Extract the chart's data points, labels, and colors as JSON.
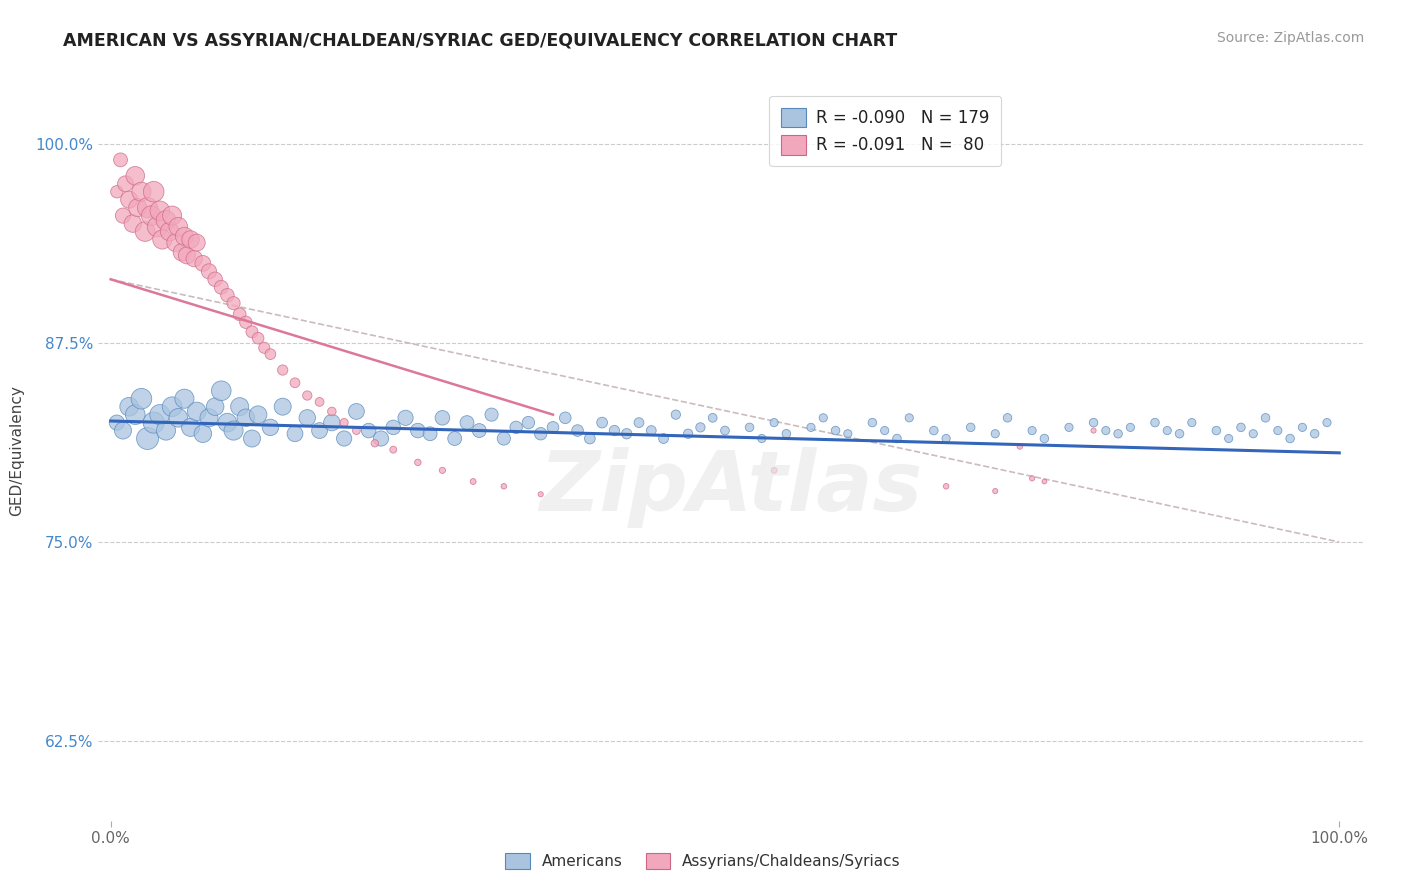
{
  "title": "AMERICAN VS ASSYRIAN/CHALDEAN/SYRIAC GED/EQUIVALENCY CORRELATION CHART",
  "source": "Source: ZipAtlas.com",
  "ylabel": "GED/Equivalency",
  "xlim": [
    -0.01,
    1.02
  ],
  "ylim": [
    0.575,
    1.04
  ],
  "ytick_labels": [
    "62.5%",
    "75.0%",
    "87.5%",
    "100.0%"
  ],
  "ytick_values": [
    0.625,
    0.75,
    0.875,
    1.0
  ],
  "xtick_labels": [
    "0.0%",
    "100.0%"
  ],
  "xtick_values": [
    0.0,
    1.0
  ],
  "legend_blue_label": "R = -0.090   N = 179",
  "legend_pink_label": "R = -0.091   N =  80",
  "blue_color": "#aac4e0",
  "pink_color": "#f2a8bc",
  "blue_edge": "#5588bb",
  "pink_edge": "#cc6688",
  "trendline_blue": "#3366bb",
  "trendline_pink": "#dd7799",
  "trendline_dashed_color": "#ccbbbb",
  "watermark": "ZipAtlas",
  "blue_trend_x": [
    0.0,
    1.0
  ],
  "blue_trend_y": [
    0.826,
    0.806
  ],
  "pink_trend_x": [
    0.0,
    0.36
  ],
  "pink_trend_y": [
    0.915,
    0.83
  ],
  "dashed_trend_x": [
    0.0,
    1.0
  ],
  "dashed_trend_y": [
    0.915,
    0.75
  ],
  "blue_scatter_x": [
    0.005,
    0.01,
    0.015,
    0.02,
    0.025,
    0.03,
    0.035,
    0.04,
    0.045,
    0.05,
    0.055,
    0.06,
    0.065,
    0.07,
    0.075,
    0.08,
    0.085,
    0.09,
    0.095,
    0.1,
    0.105,
    0.11,
    0.115,
    0.12,
    0.13,
    0.14,
    0.15,
    0.16,
    0.17,
    0.18,
    0.19,
    0.2,
    0.21,
    0.22,
    0.23,
    0.24,
    0.25,
    0.26,
    0.27,
    0.28,
    0.29,
    0.3,
    0.31,
    0.32,
    0.33,
    0.34,
    0.35,
    0.36,
    0.37,
    0.38,
    0.39,
    0.4,
    0.41,
    0.42,
    0.43,
    0.44,
    0.45,
    0.46,
    0.47,
    0.48,
    0.49,
    0.5,
    0.52,
    0.53,
    0.54,
    0.55,
    0.57,
    0.58,
    0.59,
    0.6,
    0.62,
    0.63,
    0.64,
    0.65,
    0.67,
    0.68,
    0.7,
    0.72,
    0.73,
    0.75,
    0.76,
    0.78,
    0.8,
    0.81,
    0.82,
    0.83,
    0.85,
    0.86,
    0.87,
    0.88,
    0.9,
    0.91,
    0.92,
    0.93,
    0.94,
    0.95,
    0.96,
    0.97,
    0.98,
    0.99
  ],
  "blue_scatter_y": [
    0.825,
    0.82,
    0.835,
    0.83,
    0.84,
    0.815,
    0.825,
    0.83,
    0.82,
    0.835,
    0.828,
    0.84,
    0.822,
    0.832,
    0.818,
    0.828,
    0.835,
    0.845,
    0.825,
    0.82,
    0.835,
    0.828,
    0.815,
    0.83,
    0.822,
    0.835,
    0.818,
    0.828,
    0.82,
    0.825,
    0.815,
    0.832,
    0.82,
    0.815,
    0.822,
    0.828,
    0.82,
    0.818,
    0.828,
    0.815,
    0.825,
    0.82,
    0.83,
    0.815,
    0.822,
    0.825,
    0.818,
    0.822,
    0.828,
    0.82,
    0.815,
    0.825,
    0.82,
    0.818,
    0.825,
    0.82,
    0.815,
    0.83,
    0.818,
    0.822,
    0.828,
    0.82,
    0.822,
    0.815,
    0.825,
    0.818,
    0.822,
    0.828,
    0.82,
    0.818,
    0.825,
    0.82,
    0.815,
    0.828,
    0.82,
    0.815,
    0.822,
    0.818,
    0.828,
    0.82,
    0.815,
    0.822,
    0.825,
    0.82,
    0.818,
    0.822,
    0.825,
    0.82,
    0.818,
    0.825,
    0.82,
    0.815,
    0.822,
    0.818,
    0.828,
    0.82,
    0.815,
    0.822,
    0.818,
    0.825
  ],
  "blue_scatter_sizes": [
    120,
    150,
    180,
    200,
    220,
    250,
    230,
    210,
    190,
    200,
    180,
    190,
    170,
    180,
    160,
    170,
    160,
    200,
    180,
    190,
    170,
    160,
    150,
    160,
    140,
    150,
    130,
    140,
    130,
    140,
    120,
    130,
    110,
    120,
    110,
    120,
    110,
    100,
    110,
    100,
    100,
    100,
    90,
    90,
    80,
    80,
    80,
    70,
    70,
    70,
    60,
    60,
    55,
    55,
    50,
    50,
    50,
    45,
    45,
    45,
    40,
    40,
    38,
    35,
    35,
    38,
    35,
    35,
    38,
    35,
    38,
    35,
    38,
    35,
    38,
    35,
    38,
    35,
    38,
    35,
    38,
    35,
    38,
    35,
    38,
    35,
    38,
    35,
    38,
    35,
    38,
    35,
    38,
    35,
    38,
    35,
    38,
    35,
    38,
    35
  ],
  "pink_scatter_x": [
    0.005,
    0.008,
    0.01,
    0.012,
    0.015,
    0.018,
    0.02,
    0.022,
    0.025,
    0.028,
    0.03,
    0.033,
    0.035,
    0.038,
    0.04,
    0.042,
    0.045,
    0.048,
    0.05,
    0.053,
    0.055,
    0.058,
    0.06,
    0.062,
    0.065,
    0.068,
    0.07,
    0.075,
    0.08,
    0.085,
    0.09,
    0.095,
    0.1,
    0.105,
    0.11,
    0.115,
    0.12,
    0.125,
    0.13,
    0.14,
    0.15,
    0.16,
    0.17,
    0.18,
    0.19,
    0.2,
    0.215,
    0.23,
    0.25,
    0.27,
    0.295,
    0.32,
    0.35,
    0.54,
    0.68,
    0.72,
    0.74,
    0.75,
    0.76,
    0.8
  ],
  "pink_scatter_y": [
    0.97,
    0.99,
    0.955,
    0.975,
    0.965,
    0.95,
    0.98,
    0.96,
    0.97,
    0.945,
    0.96,
    0.955,
    0.97,
    0.948,
    0.958,
    0.94,
    0.952,
    0.945,
    0.955,
    0.938,
    0.948,
    0.932,
    0.942,
    0.93,
    0.94,
    0.928,
    0.938,
    0.925,
    0.92,
    0.915,
    0.91,
    0.905,
    0.9,
    0.893,
    0.888,
    0.882,
    0.878,
    0.872,
    0.868,
    0.858,
    0.85,
    0.842,
    0.838,
    0.832,
    0.825,
    0.82,
    0.812,
    0.808,
    0.8,
    0.795,
    0.788,
    0.785,
    0.78,
    0.795,
    0.785,
    0.782,
    0.81,
    0.79,
    0.788,
    0.82
  ],
  "pink_scatter_sizes": [
    80,
    100,
    120,
    130,
    150,
    160,
    180,
    170,
    190,
    200,
    210,
    200,
    220,
    210,
    200,
    190,
    200,
    180,
    190,
    170,
    180,
    160,
    170,
    150,
    160,
    140,
    150,
    130,
    120,
    110,
    100,
    95,
    90,
    85,
    80,
    75,
    70,
    65,
    60,
    55,
    50,
    45,
    40,
    38,
    35,
    32,
    28,
    25,
    22,
    20,
    18,
    16,
    14,
    18,
    16,
    14,
    16,
    14,
    12,
    14
  ]
}
